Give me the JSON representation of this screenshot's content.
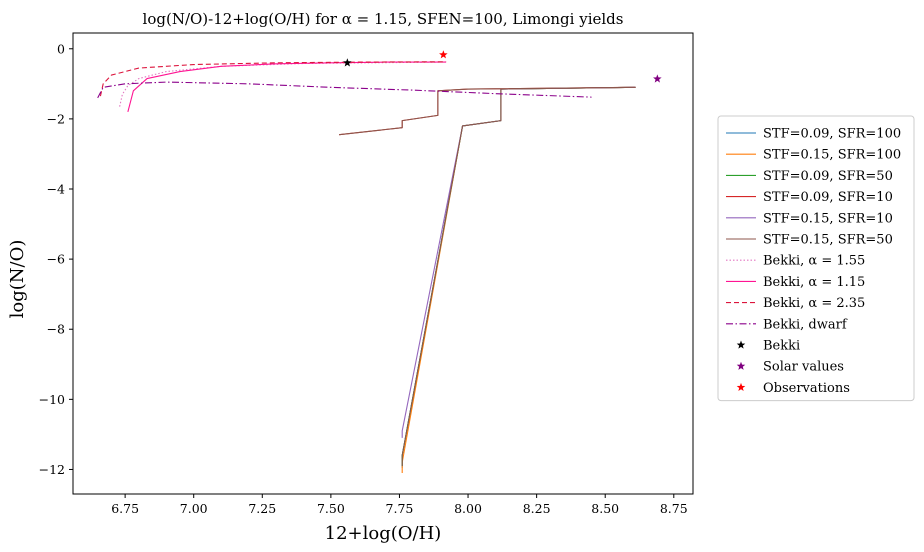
{
  "chart_data": {
    "type": "line",
    "title": "log(N/O)-12+log(O/H) for α = 1.15, SFEN=100, Limongi yields",
    "xlabel": "12+log(O/H)",
    "ylabel": "log(N/O)",
    "xlim": [
      6.56,
      8.82
    ],
    "ylim": [
      -12.7,
      0.45
    ],
    "xticks": [
      6.75,
      7.0,
      7.25,
      7.5,
      7.75,
      8.0,
      8.25,
      8.5,
      8.75
    ],
    "xtick_labels": [
      "6.75",
      "7.00",
      "7.25",
      "7.50",
      "7.75",
      "8.00",
      "8.25",
      "8.50",
      "8.75"
    ],
    "yticks": [
      0,
      -2,
      -4,
      -6,
      -8,
      -10,
      -12
    ],
    "ytick_labels": [
      "0",
      "−2",
      "−4",
      "−6",
      "−8",
      "−10",
      "−12"
    ],
    "grid": false,
    "legend_position": "right, outside plot",
    "series": [
      {
        "name": "STF=0.09, SFR=100",
        "color": "#1f77b4",
        "style": "solid",
        "x": [
          7.76,
          7.76,
          7.98,
          8.12,
          8.12,
          8.61
        ],
        "y": [
          -11.95,
          -11.6,
          -2.2,
          -2.05,
          -1.15,
          -1.1
        ]
      },
      {
        "name": "STF=0.15, SFR=100",
        "color": "#ff7f0e",
        "style": "solid",
        "x": [
          7.76,
          7.76,
          7.98,
          8.12,
          8.12,
          8.61
        ],
        "y": [
          -12.1,
          -11.8,
          -2.2,
          -2.05,
          -1.15,
          -1.1
        ]
      },
      {
        "name": "STF=0.09, SFR=50",
        "color": "#2ca02c",
        "style": "solid",
        "x": [
          7.76,
          7.76,
          7.98,
          8.12,
          8.12,
          8.61
        ],
        "y": [
          -11.9,
          -11.6,
          -2.2,
          -2.05,
          -1.15,
          -1.1
        ]
      },
      {
        "name": "STF=0.09, SFR=10",
        "color": "#d62728",
        "style": "solid",
        "x": [
          7.53,
          7.76,
          7.76,
          7.89,
          7.89,
          8.0,
          8.61
        ],
        "y": [
          -2.45,
          -2.25,
          -2.05,
          -1.9,
          -1.2,
          -1.15,
          -1.1
        ]
      },
      {
        "name": "STF=0.15, SFR=10",
        "color": "#9467bd",
        "style": "solid",
        "x": [
          7.76,
          7.76,
          7.98,
          8.12,
          8.12,
          8.61
        ],
        "y": [
          -11.1,
          -10.9,
          -2.2,
          -2.05,
          -1.15,
          -1.1
        ]
      },
      {
        "name": "STF=0.15, SFR=50",
        "color": "#8c564b",
        "style": "solid",
        "x": [
          7.53,
          7.76,
          7.76,
          7.89,
          7.89,
          8.0,
          8.61,
          8.61,
          8.12,
          8.12,
          7.98,
          7.76,
          7.76
        ],
        "y": [
          -2.45,
          -2.25,
          -2.05,
          -1.9,
          -1.2,
          -1.15,
          -1.1,
          -1.1,
          -1.15,
          -2.05,
          -2.2,
          -11.6,
          -11.9
        ]
      },
      {
        "name": "Bekki, α = 1.55",
        "color": "#e377c2",
        "style": "dotted",
        "x": [
          6.73,
          6.74,
          6.76,
          6.8,
          6.9,
          7.1,
          7.4,
          7.9
        ],
        "y": [
          -1.65,
          -1.3,
          -1.05,
          -0.85,
          -0.65,
          -0.5,
          -0.42,
          -0.38
        ]
      },
      {
        "name": "Bekki, α = 1.15",
        "color": "#ff1493",
        "style": "solid",
        "x": [
          6.76,
          6.78,
          6.83,
          6.95,
          7.1,
          7.3,
          7.5,
          7.7,
          7.92
        ],
        "y": [
          -1.8,
          -1.2,
          -0.85,
          -0.65,
          -0.5,
          -0.43,
          -0.4,
          -0.38,
          -0.38
        ]
      },
      {
        "name": "Bekki, α = 2.35",
        "color": "#dc143c",
        "style": "dashed",
        "x": [
          6.66,
          6.67,
          6.7,
          6.8,
          7.0,
          7.3,
          7.6,
          7.92
        ],
        "y": [
          -1.35,
          -1.0,
          -0.75,
          -0.55,
          -0.45,
          -0.4,
          -0.38,
          -0.37
        ]
      },
      {
        "name": "Bekki, dwarf",
        "color": "#8b008b",
        "style": "dashdot",
        "x": [
          6.65,
          6.67,
          6.75,
          6.9,
          7.2,
          7.5,
          7.8,
          8.1,
          8.45
        ],
        "y": [
          -1.4,
          -1.1,
          -1.0,
          -0.95,
          -1.0,
          -1.1,
          -1.18,
          -1.28,
          -1.38
        ]
      }
    ],
    "markers": [
      {
        "name": "Bekki",
        "color": "#000000",
        "x": [
          7.56
        ],
        "y": [
          -0.4
        ]
      },
      {
        "name": "Solar values",
        "color": "#800080",
        "x": [
          8.69
        ],
        "y": [
          -0.86
        ]
      },
      {
        "name": "Observations",
        "color": "#ff0000",
        "x": [
          7.91
        ],
        "y": [
          -0.17
        ]
      }
    ]
  }
}
